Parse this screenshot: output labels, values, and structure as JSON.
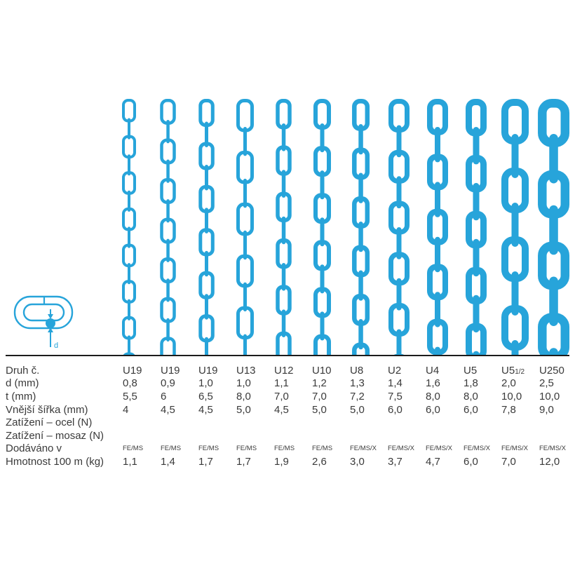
{
  "colors": {
    "chain": "#27a4da",
    "text": "#3a3a3a",
    "rule": "#1c1c1c",
    "background": "#ffffff"
  },
  "diagram": {
    "label": "d"
  },
  "table": {
    "rows": [
      {
        "key": "druh",
        "label": "Druh č.",
        "values": [
          "U19",
          "U19",
          "U19",
          "U13",
          "U12",
          "U10",
          "U8",
          "U2",
          "U4",
          "U5",
          {
            "main": "U5",
            "sub": "1/2"
          },
          "U250"
        ]
      },
      {
        "key": "d",
        "label": "d (mm)",
        "values": [
          "0,8",
          "0,9",
          "1,0",
          "1,0",
          "1,1",
          "1,2",
          "1,3",
          "1,4",
          "1,6",
          "1,8",
          "2,0",
          "2,5"
        ]
      },
      {
        "key": "t",
        "label": "t (mm)",
        "values": [
          "5,5",
          "6",
          "6,5",
          "8,0",
          "7,0",
          "7,0",
          "7,2",
          "7,5",
          "8,0",
          "8,0",
          "10,0",
          "10,0"
        ]
      },
      {
        "key": "sirka",
        "label": "Vnější šířka (mm)",
        "values": [
          "4",
          "4,5",
          "4,5",
          "5,0",
          "4,5",
          "5,0",
          "5,0",
          "6,0",
          "6,0",
          "6,0",
          "7,8",
          "9,0"
        ]
      },
      {
        "key": "ocel",
        "label": "Zatížení – ocel (N)",
        "values": []
      },
      {
        "key": "mosaz",
        "label": "Zatížení – mosaz (N)",
        "values": []
      },
      {
        "key": "dodavano",
        "label": "Dodáváno v",
        "small": true,
        "values": [
          "FE/MS",
          "FE/MS",
          "FE/MS",
          "FE/MS",
          "FE/MS",
          "FE/MS",
          "FE/MS/X",
          "FE/MS/X",
          "FE/MS/X",
          "FE/MS/X",
          "FE/MS/X",
          "FE/MS/X"
        ]
      },
      {
        "key": "hmotnost",
        "label": "Hmotnost 100 m (kg)",
        "values": [
          "1,1",
          "1,4",
          "1,7",
          "1,7",
          "1,9",
          "2,6",
          "3,0",
          "3,7",
          "4,7",
          "6,0",
          "7,0",
          "12,0"
        ]
      }
    ]
  }
}
